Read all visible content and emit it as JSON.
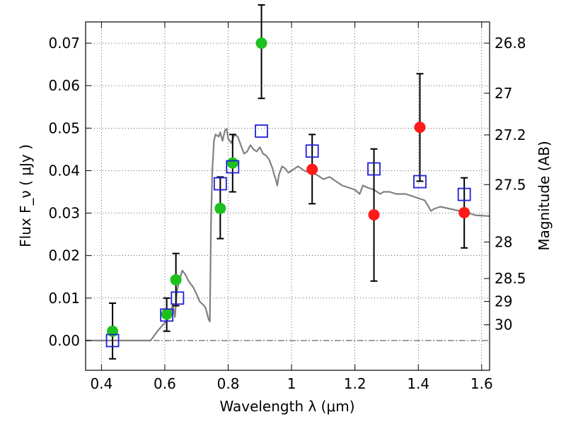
{
  "chart_data": {
    "type": "scatter",
    "xlabel": "Wavelength  λ (μm)",
    "ylabel": "Flux  F_ν  ( μJy )",
    "ylabel_right": "Magnitude (AB)",
    "xlim": [
      0.35,
      1.625
    ],
    "ylim": [
      -0.007,
      0.075
    ],
    "x_ticks": [
      0.4,
      0.6,
      0.8,
      1.0,
      1.2,
      1.4,
      1.6
    ],
    "x_tick_labels": [
      "0.4",
      "0.6",
      "0.8",
      "1",
      "1.2",
      "1.4",
      "1.6"
    ],
    "y_ticks": [
      0.0,
      0.01,
      0.02,
      0.03,
      0.04,
      0.05,
      0.06,
      0.07
    ],
    "y_tick_labels": [
      "0.00",
      "0.01",
      "0.02",
      "0.03",
      "0.04",
      "0.05",
      "0.06",
      "0.07"
    ],
    "right_ticks": [
      {
        "label": "26.8",
        "flux": 0.07
      },
      {
        "label": "27",
        "flux": 0.0582
      },
      {
        "label": "27.2",
        "flux": 0.0484
      },
      {
        "label": "27.5",
        "flux": 0.0367
      },
      {
        "label": "28",
        "flux": 0.0232
      },
      {
        "label": "28.5",
        "flux": 0.0146
      },
      {
        "label": "29",
        "flux": 0.0092
      },
      {
        "label": "30",
        "flux": 0.0037
      }
    ],
    "grid": true,
    "zero_line": true,
    "colors": {
      "green": "#1ec01e",
      "red": "#ff1a1a",
      "blue": "#1f1fd6",
      "model": "#808080",
      "errorbar": "#000000"
    },
    "series": [
      {
        "marker": "circle",
        "color": "green",
        "points": [
          {
            "x": 0.435,
            "y": 0.0022,
            "ylo": -0.0043,
            "yhi": 0.0088
          },
          {
            "x": 0.606,
            "y": 0.0062,
            "ylo": 0.0022,
            "yhi": 0.01
          },
          {
            "x": 0.635,
            "y": 0.0143,
            "ylo": 0.0082,
            "yhi": 0.0205
          },
          {
            "x": 0.775,
            "y": 0.0311,
            "ylo": 0.024,
            "yhi": 0.0385
          },
          {
            "x": 0.814,
            "y": 0.0418,
            "ylo": 0.035,
            "yhi": 0.0485
          },
          {
            "x": 0.905,
            "y": 0.07,
            "ylo": 0.057,
            "yhi": 0.079
          }
        ]
      },
      {
        "marker": "circle",
        "color": "red",
        "points": [
          {
            "x": 1.065,
            "y": 0.0403,
            "ylo": 0.0322,
            "yhi": 0.0485
          },
          {
            "x": 1.26,
            "y": 0.0296,
            "ylo": 0.014,
            "yhi": 0.0451
          },
          {
            "x": 1.405,
            "y": 0.0502,
            "ylo": 0.0375,
            "yhi": 0.0628
          },
          {
            "x": 1.545,
            "y": 0.0301,
            "ylo": 0.0218,
            "yhi": 0.0383
          }
        ]
      },
      {
        "marker": "open-square",
        "color": "blue",
        "points": [
          {
            "x": 0.435,
            "y": 0.0
          },
          {
            "x": 0.606,
            "y": 0.006
          },
          {
            "x": 0.64,
            "y": 0.01
          },
          {
            "x": 0.775,
            "y": 0.0369
          },
          {
            "x": 0.814,
            "y": 0.0409
          },
          {
            "x": 0.905,
            "y": 0.0493
          },
          {
            "x": 1.065,
            "y": 0.0446
          },
          {
            "x": 1.26,
            "y": 0.0404
          },
          {
            "x": 1.405,
            "y": 0.0374
          },
          {
            "x": 1.545,
            "y": 0.0344
          }
        ]
      }
    ],
    "model_curve": [
      [
        0.35,
        0.0
      ],
      [
        0.555,
        0.0
      ],
      [
        0.58,
        0.0025
      ],
      [
        0.6,
        0.0042
      ],
      [
        0.615,
        0.0055
      ],
      [
        0.625,
        0.0085
      ],
      [
        0.632,
        0.0055
      ],
      [
        0.638,
        0.0115
      ],
      [
        0.645,
        0.0138
      ],
      [
        0.655,
        0.0165
      ],
      [
        0.665,
        0.0155
      ],
      [
        0.675,
        0.014
      ],
      [
        0.69,
        0.0125
      ],
      [
        0.7,
        0.011
      ],
      [
        0.71,
        0.0092
      ],
      [
        0.72,
        0.0085
      ],
      [
        0.728,
        0.0078
      ],
      [
        0.733,
        0.0065
      ],
      [
        0.738,
        0.005
      ],
      [
        0.742,
        0.0045
      ],
      [
        0.746,
        0.028
      ],
      [
        0.75,
        0.04
      ],
      [
        0.755,
        0.047
      ],
      [
        0.76,
        0.0485
      ],
      [
        0.77,
        0.048
      ],
      [
        0.775,
        0.049
      ],
      [
        0.782,
        0.047
      ],
      [
        0.79,
        0.0495
      ],
      [
        0.795,
        0.0498
      ],
      [
        0.8,
        0.0475
      ],
      [
        0.81,
        0.0465
      ],
      [
        0.82,
        0.0485
      ],
      [
        0.83,
        0.048
      ],
      [
        0.84,
        0.046
      ],
      [
        0.85,
        0.044
      ],
      [
        0.86,
        0.0445
      ],
      [
        0.87,
        0.046
      ],
      [
        0.88,
        0.045
      ],
      [
        0.89,
        0.0445
      ],
      [
        0.9,
        0.0455
      ],
      [
        0.91,
        0.044
      ],
      [
        0.92,
        0.0435
      ],
      [
        0.93,
        0.0425
      ],
      [
        0.94,
        0.0405
      ],
      [
        0.945,
        0.039
      ],
      [
        0.95,
        0.038
      ],
      [
        0.955,
        0.0365
      ],
      [
        0.96,
        0.039
      ],
      [
        0.97,
        0.041
      ],
      [
        0.98,
        0.0405
      ],
      [
        0.99,
        0.0395
      ],
      [
        1.0,
        0.04
      ],
      [
        1.02,
        0.041
      ],
      [
        1.04,
        0.04
      ],
      [
        1.06,
        0.0395
      ],
      [
        1.08,
        0.039
      ],
      [
        1.1,
        0.038
      ],
      [
        1.12,
        0.0385
      ],
      [
        1.14,
        0.0375
      ],
      [
        1.16,
        0.0365
      ],
      [
        1.18,
        0.036
      ],
      [
        1.2,
        0.0355
      ],
      [
        1.215,
        0.0345
      ],
      [
        1.225,
        0.0365
      ],
      [
        1.24,
        0.036
      ],
      [
        1.26,
        0.0355
      ],
      [
        1.28,
        0.0345
      ],
      [
        1.29,
        0.035
      ],
      [
        1.31,
        0.035
      ],
      [
        1.33,
        0.0345
      ],
      [
        1.36,
        0.0345
      ],
      [
        1.38,
        0.034
      ],
      [
        1.4,
        0.0335
      ],
      [
        1.42,
        0.033
      ],
      [
        1.43,
        0.0318
      ],
      [
        1.44,
        0.0305
      ],
      [
        1.45,
        0.031
      ],
      [
        1.47,
        0.0315
      ],
      [
        1.5,
        0.031
      ],
      [
        1.53,
        0.0305
      ],
      [
        1.56,
        0.03
      ],
      [
        1.58,
        0.0295
      ],
      [
        1.625,
        0.0293
      ]
    ]
  }
}
